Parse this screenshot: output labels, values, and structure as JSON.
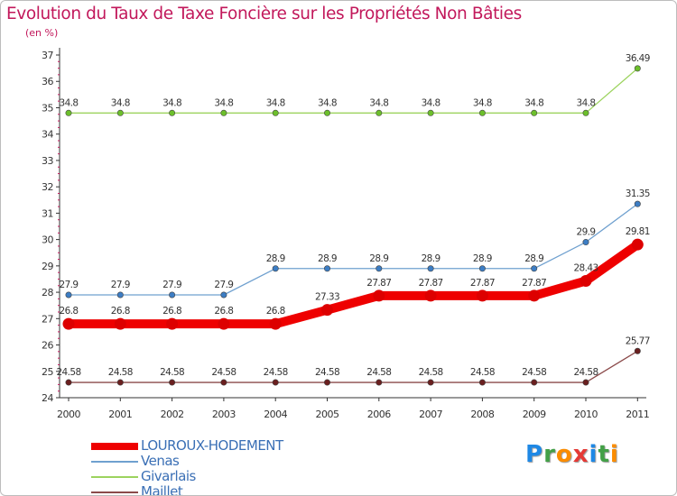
{
  "title": "Evolution du Taux de Taxe Foncière sur les Propriétés Non Bâties",
  "unit_label": "(en %)",
  "logo": {
    "text": "Proxiti",
    "letters": [
      "P",
      "r",
      "o",
      "x",
      "i",
      "t",
      "i"
    ],
    "colors": [
      "#1e88e5",
      "#43a047",
      "#fb8c00",
      "#e53935",
      "#1e88e5",
      "#43a047",
      "#fb8c00"
    ]
  },
  "chart_data": {
    "type": "line",
    "title": "Evolution du Taux de Taxe Foncière sur les Propriétés Non Bâties",
    "ylabel": "(en %)",
    "xlabel": "",
    "x": [
      "2000",
      "2001",
      "2002",
      "2003",
      "2004",
      "2005",
      "2006",
      "2007",
      "2008",
      "2009",
      "2010",
      "2011"
    ],
    "ylim": [
      24,
      37
    ],
    "yticks": [
      24,
      25,
      26,
      27,
      28,
      29,
      30,
      31,
      32,
      33,
      34,
      35,
      36,
      37
    ],
    "series": [
      {
        "name": "LOUROUX-HODEMENT",
        "color": "#ee0000",
        "bold": true,
        "values": [
          26.8,
          26.8,
          26.8,
          26.8,
          26.8,
          27.33,
          27.87,
          27.87,
          27.87,
          27.87,
          28.43,
          29.81
        ],
        "labels": [
          "26.8",
          "26.8",
          "26.8",
          "26.8",
          "26.8",
          "27.33",
          "27.87",
          "27.87",
          "27.87",
          "27.87",
          "28.43",
          "29.81"
        ]
      },
      {
        "name": "Venas",
        "color": "#6fa0cf",
        "marker": "#3c7dc4",
        "bold": false,
        "values": [
          27.9,
          27.9,
          27.9,
          27.9,
          28.9,
          28.9,
          28.9,
          28.9,
          28.9,
          28.9,
          29.9,
          31.35
        ],
        "labels": [
          "27.9",
          "27.9",
          "27.9",
          "27.9",
          "28.9",
          "28.9",
          "28.9",
          "28.9",
          "28.9",
          "28.9",
          "29.9",
          "31.35"
        ]
      },
      {
        "name": "Givarlais",
        "color": "#9cd35e",
        "marker": "#6cbf2b",
        "bold": false,
        "values": [
          34.8,
          34.8,
          34.8,
          34.8,
          34.8,
          34.8,
          34.8,
          34.8,
          34.8,
          34.8,
          34.8,
          36.49
        ],
        "labels": [
          "34.8",
          "34.8",
          "34.8",
          "34.8",
          "34.8",
          "34.8",
          "34.8",
          "34.8",
          "34.8",
          "34.8",
          "34.8",
          "36.49"
        ]
      },
      {
        "name": "Maillet",
        "color": "#8b4a4a",
        "marker": "#6a1f1f",
        "bold": false,
        "values": [
          24.58,
          24.58,
          24.58,
          24.58,
          24.58,
          24.58,
          24.58,
          24.58,
          24.58,
          24.58,
          24.58,
          25.77
        ],
        "labels": [
          "24.58",
          "24.58",
          "24.58",
          "24.58",
          "24.58",
          "24.58",
          "24.58",
          "24.58",
          "24.58",
          "24.58",
          "24.58",
          "25.77"
        ]
      }
    ],
    "legend_position": "bottom-left",
    "grid": false
  }
}
